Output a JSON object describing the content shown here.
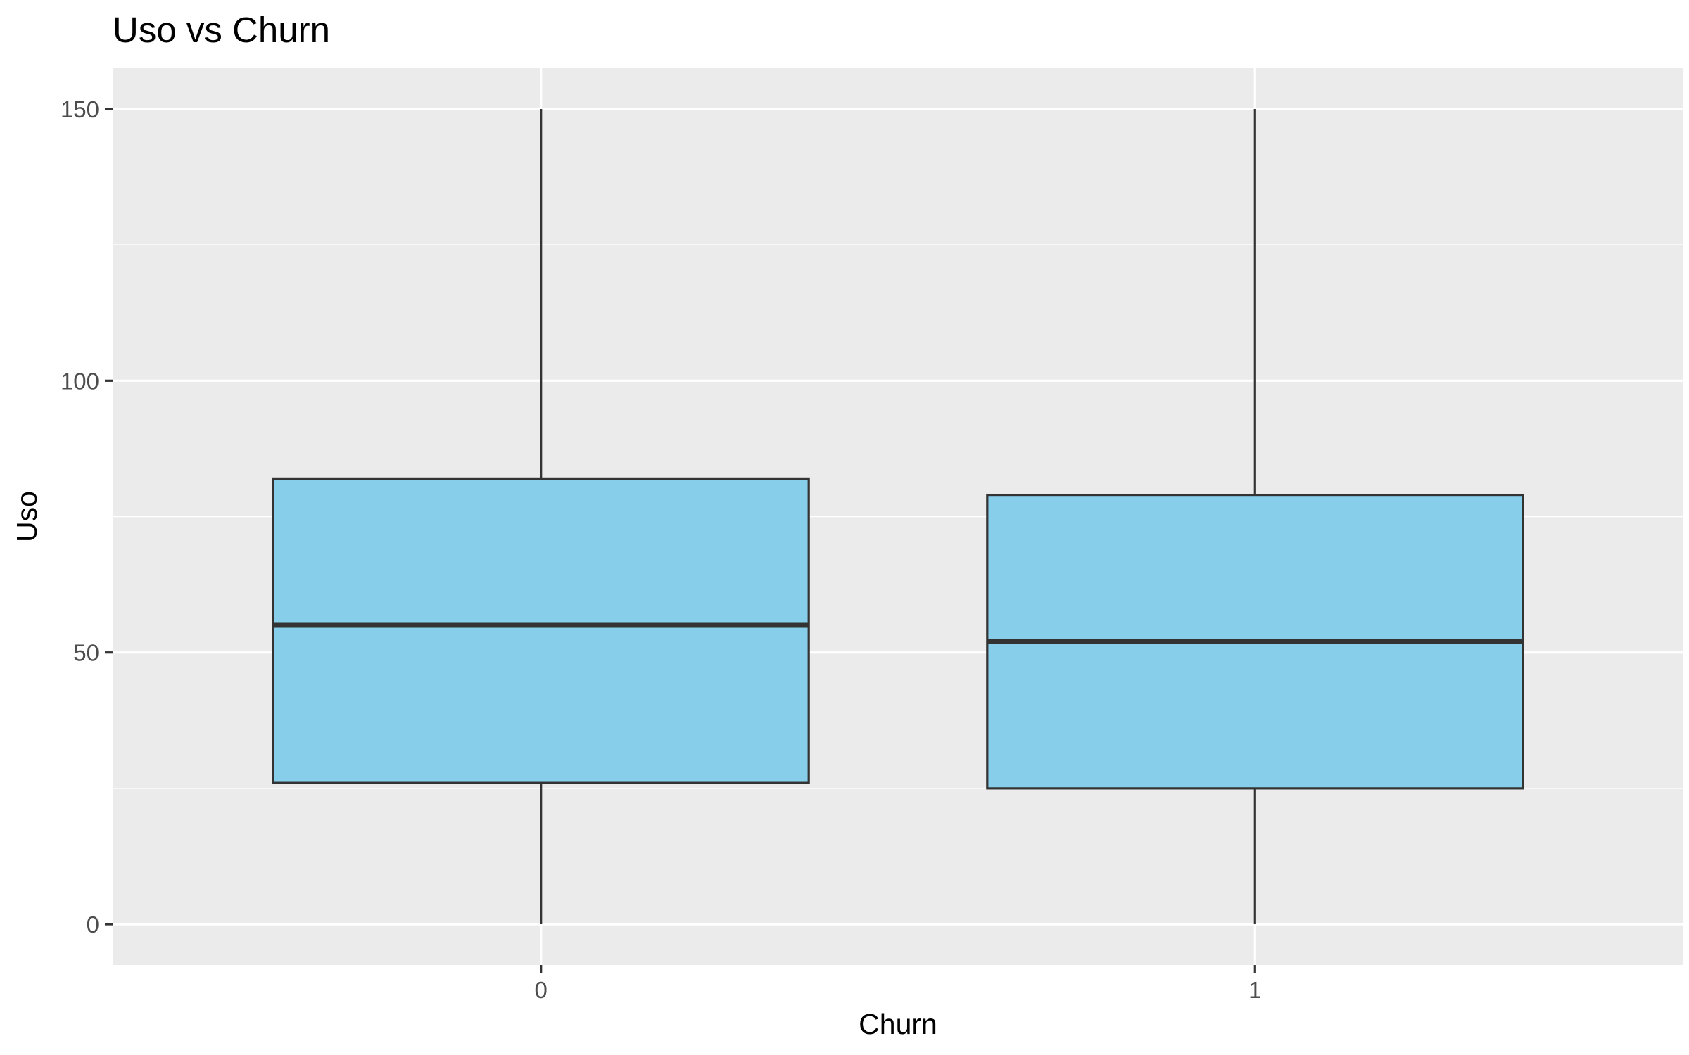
{
  "chart_data": {
    "type": "boxplot",
    "title": "Uso vs Churn",
    "xlabel": "Churn",
    "ylabel": "Uso",
    "categories": [
      "0",
      "1"
    ],
    "boxes": [
      {
        "category": "0",
        "whisker_low": 0,
        "q1": 26,
        "median": 55,
        "q3": 82,
        "whisker_high": 150
      },
      {
        "category": "1",
        "whisker_low": 0,
        "q1": 25,
        "median": 52,
        "q3": 79,
        "whisker_high": 150
      }
    ],
    "yticks": [
      0,
      50,
      100,
      150
    ],
    "yticks_labels": [
      "0",
      "50",
      "100",
      "150"
    ],
    "ylim": [
      -7.5,
      157.5
    ],
    "grid": true,
    "colors": {
      "box_fill": "#87CEEB",
      "box_outline": "#333333",
      "panel_background": "#EBEBEB",
      "grid_line": "#FFFFFF"
    }
  }
}
